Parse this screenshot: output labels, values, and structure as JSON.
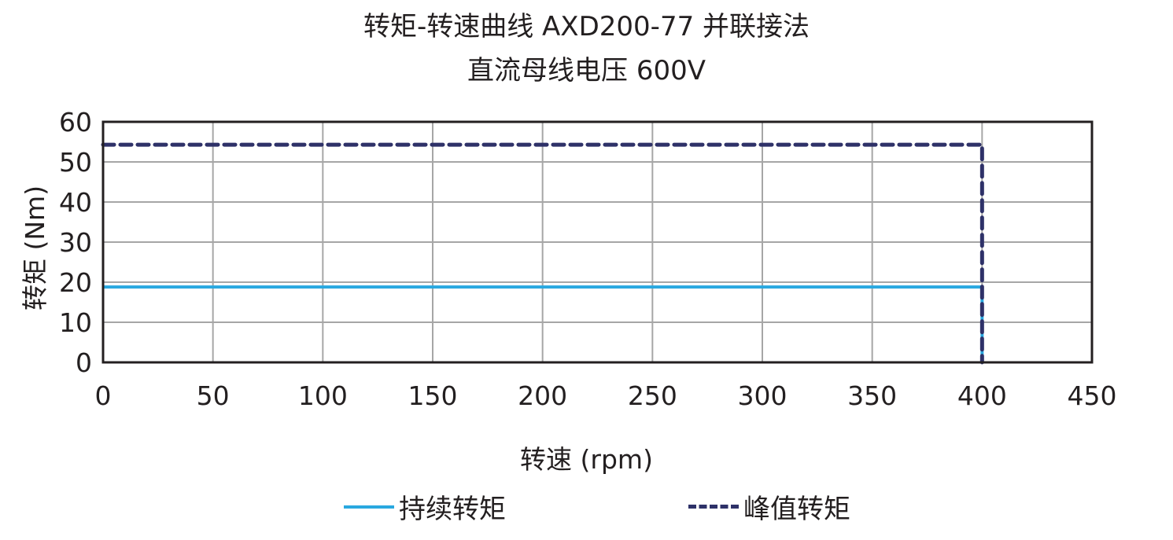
{
  "title": {
    "line1": "转矩-转速曲线 AXD200-77 并联接法",
    "line2": "直流母线电压 600V"
  },
  "axes": {
    "xlabel": "转速 (rpm)",
    "ylabel": "转矩 (Nm)",
    "xticks": [
      "0",
      "50",
      "100",
      "150",
      "200",
      "250",
      "300",
      "350",
      "400",
      "450"
    ],
    "yticks": [
      "0",
      "10",
      "20",
      "30",
      "40",
      "50",
      "60"
    ]
  },
  "legend": {
    "continuous": "持续转矩",
    "peak": "峰值转矩"
  },
  "colors": {
    "continuous": "#29a8e0",
    "peak": "#2e3168",
    "grid": "#a6a6a6",
    "frame": "#231f20"
  },
  "chart_data": {
    "type": "line",
    "title": "转矩-转速曲线 AXD200-77 并联接法 / 直流母线电压 600V",
    "xlabel": "转速 (rpm)",
    "ylabel": "转矩 (Nm)",
    "xlim": [
      0,
      450
    ],
    "ylim": [
      0,
      60
    ],
    "grid": true,
    "legend_position": "bottom",
    "series": [
      {
        "name": "持续转矩",
        "style": "solid",
        "color": "#29a8e0",
        "x": [
          0,
          400,
          400
        ],
        "y": [
          18.8,
          18.8,
          0
        ]
      },
      {
        "name": "峰值转矩",
        "style": "dashed",
        "color": "#2e3168",
        "x": [
          0,
          400,
          400
        ],
        "y": [
          54.3,
          54.3,
          0
        ]
      }
    ]
  }
}
